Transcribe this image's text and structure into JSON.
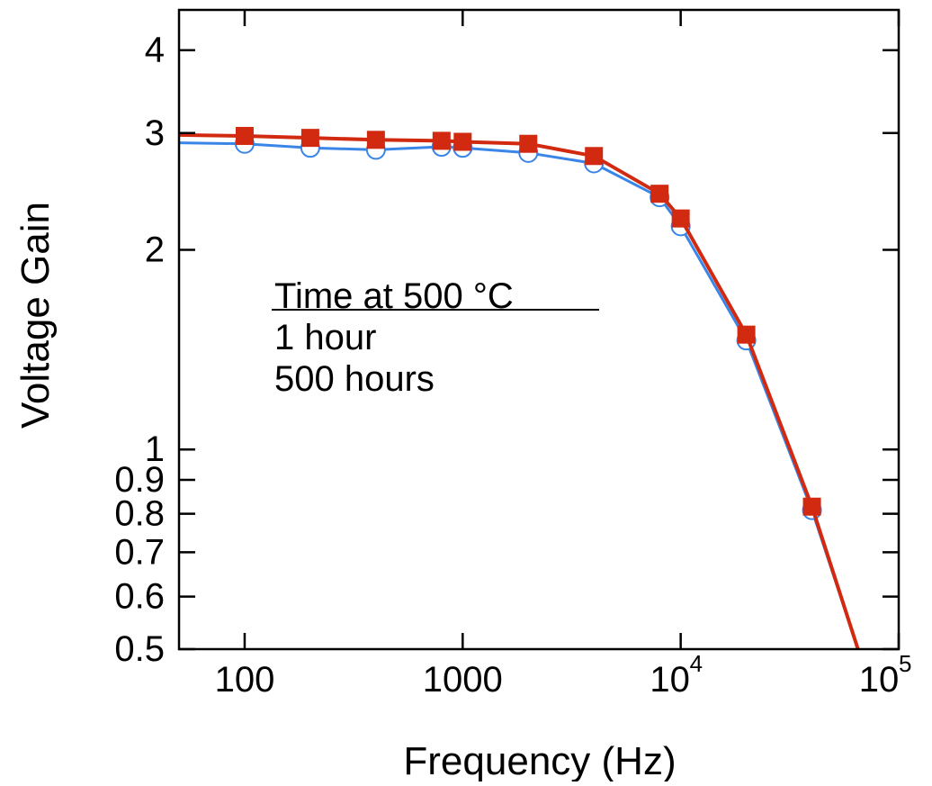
{
  "chart_data": {
    "type": "line",
    "title": "",
    "xlabel": "Frequency (Hz)",
    "ylabel": "Voltage Gain",
    "x_scale": "log",
    "y_scale": "log",
    "xlim": [
      50,
      100000
    ],
    "ylim": [
      0.5,
      4.6
    ],
    "grid": false,
    "x_ticks": [
      {
        "value": 100,
        "label": "100"
      },
      {
        "value": 1000,
        "label": "1000"
      },
      {
        "value": 10000,
        "base": "10",
        "exp": "4"
      },
      {
        "value": 100000,
        "base": "10",
        "exp": "5"
      }
    ],
    "y_ticks": [
      {
        "value": 0.5,
        "label": "0.5"
      },
      {
        "value": 0.6,
        "label": "0.6"
      },
      {
        "value": 0.7,
        "label": "0.7"
      },
      {
        "value": 0.8,
        "label": "0.8"
      },
      {
        "value": 0.9,
        "label": "0.9"
      },
      {
        "value": 1,
        "label": "1"
      },
      {
        "value": 2,
        "label": "2"
      },
      {
        "value": 3,
        "label": "3"
      },
      {
        "value": 4,
        "label": "4"
      }
    ],
    "legend": {
      "title": "Time at 500 °C",
      "placement": "center-left"
    },
    "series": [
      {
        "name": "1 hour",
        "legend_color": "#6f9df0",
        "line_color": "#3a86e8",
        "marker": "open-circle",
        "x": [
          50,
          100,
          200,
          400,
          800,
          1000,
          2000,
          4000,
          8000,
          10000,
          20000,
          40000,
          65000
        ],
        "y": [
          2.9,
          2.89,
          2.85,
          2.83,
          2.86,
          2.85,
          2.8,
          2.7,
          2.4,
          2.17,
          1.46,
          0.81,
          0.5
        ]
      },
      {
        "name": "500 hours",
        "legend_color": "#d12a10",
        "line_color": "#d12a10",
        "marker": "filled-square",
        "x": [
          50,
          100,
          200,
          400,
          800,
          1000,
          2000,
          4000,
          8000,
          10000,
          20000,
          40000,
          65000
        ],
        "y": [
          2.98,
          2.97,
          2.95,
          2.93,
          2.92,
          2.91,
          2.89,
          2.77,
          2.43,
          2.23,
          1.49,
          0.82,
          0.5
        ]
      }
    ]
  }
}
